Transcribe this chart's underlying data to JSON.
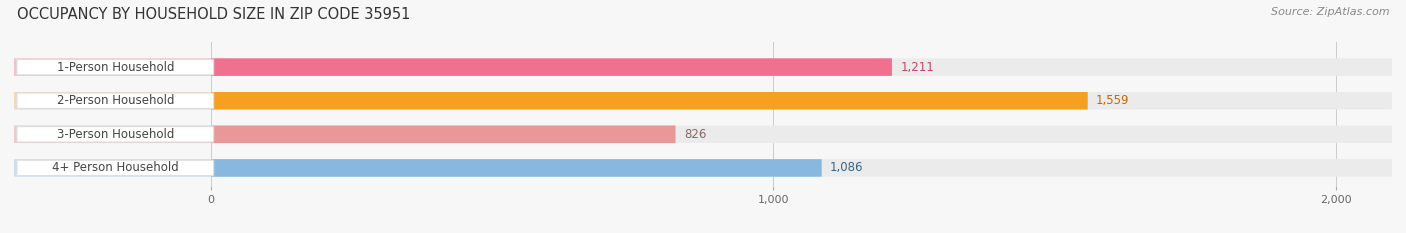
{
  "title": "OCCUPANCY BY HOUSEHOLD SIZE IN ZIP CODE 35951",
  "source": "Source: ZipAtlas.com",
  "categories": [
    "1-Person Household",
    "2-Person Household",
    "3-Person Household",
    "4+ Person Household"
  ],
  "values": [
    1211,
    1559,
    826,
    1086
  ],
  "bar_colors": [
    "#f07090",
    "#f5a020",
    "#e89898",
    "#88b8e0"
  ],
  "bar_light_colors": [
    "#f5c0c8",
    "#f5dab0",
    "#f0c8c8",
    "#c8dff5"
  ],
  "bg_bar_color": "#ebebeb",
  "xlim_min": -350,
  "xlim_max": 2100,
  "xticks": [
    0,
    1000,
    2000
  ],
  "xtick_labels": [
    "0",
    "1,000",
    "2,000"
  ],
  "value_labels": [
    "1,211",
    "1,559",
    "826",
    "1,086"
  ],
  "value_colors": [
    "#cc4466",
    "#cc6600",
    "#886666",
    "#336688"
  ],
  "background_color": "#f7f7f7",
  "title_fontsize": 10.5,
  "source_fontsize": 8,
  "bar_label_fontsize": 8.5,
  "value_fontsize": 8.5,
  "tick_fontsize": 8
}
